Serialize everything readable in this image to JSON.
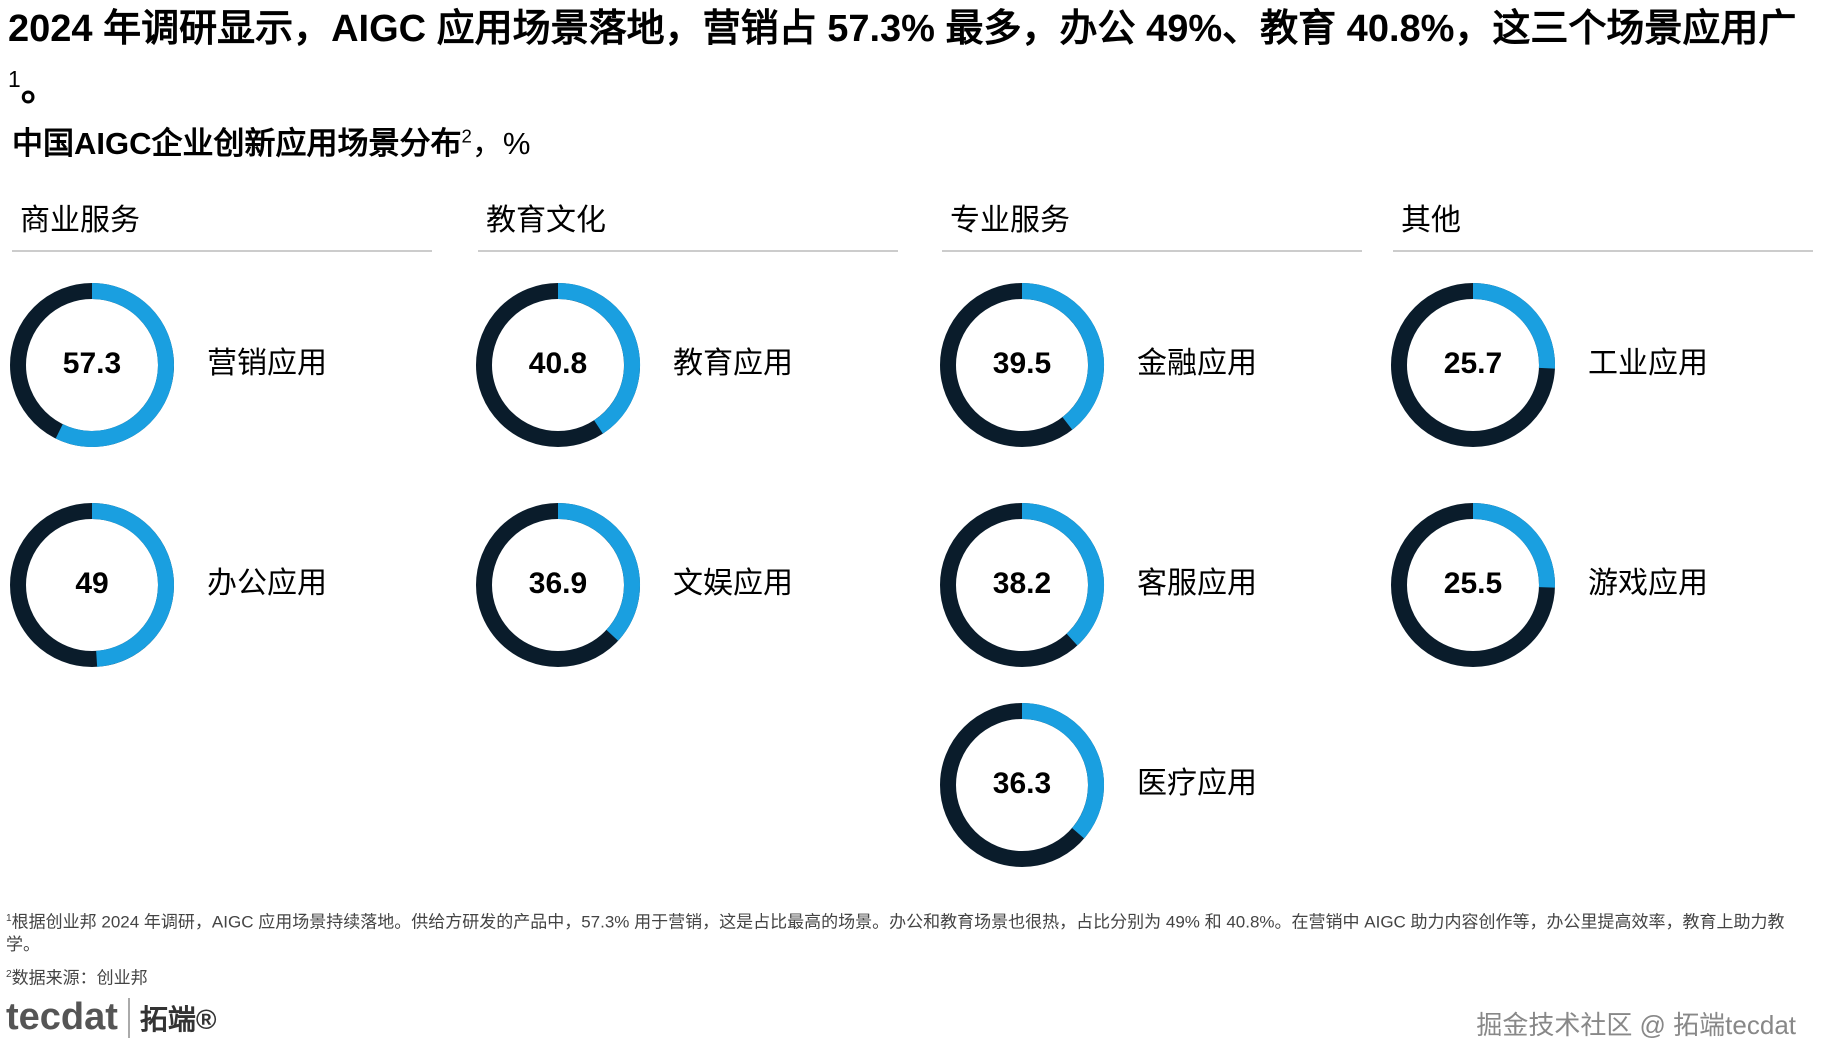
{
  "title": "2024 年调研显示，AIGC 应用场景落地，营销占 57.3% 最多，办公 49%、教育 40.8%，这三个场景应用广",
  "title_note": "1",
  "title_end": "。",
  "subtitle": "中国AIGC企业创新应用场景分布",
  "subtitle_note": "2",
  "subtitle_unit": "，%",
  "chart_data": [
    {
      "type": "donut",
      "title": "商业服务",
      "categories": [
        "营销应用",
        "办公应用"
      ],
      "values": [
        57.3,
        49
      ],
      "ylim": [
        0,
        100
      ],
      "color": "#1a9fe0",
      "track_color": "#0a1c2b"
    },
    {
      "type": "donut",
      "title": "教育文化",
      "categories": [
        "教育应用",
        "文娱应用"
      ],
      "values": [
        40.8,
        36.9
      ],
      "ylim": [
        0,
        100
      ],
      "color": "#1a9fe0",
      "track_color": "#0a1c2b"
    },
    {
      "type": "donut",
      "title": "专业服务",
      "categories": [
        "金融应用",
        "客服应用",
        "医疗应用"
      ],
      "values": [
        39.5,
        38.2,
        36.3
      ],
      "ylim": [
        0,
        100
      ],
      "color": "#1a9fe0",
      "track_color": "#0a1c2b"
    },
    {
      "type": "donut",
      "title": "其他",
      "categories": [
        "工业应用",
        "游戏应用"
      ],
      "values": [
        25.7,
        25.5
      ],
      "ylim": [
        0,
        100
      ],
      "color": "#1a9fe0",
      "track_color": "#0a1c2b"
    }
  ],
  "footnotes": [
    {
      "mark": "1",
      "text": "根据创业邦 2024 年调研，AIGC 应用场景持续落地。供给方研发的产品中，57.3% 用于营销，这是占比最高的场景。办公和教育场景也很热，占比分别为 49% 和 40.8%。在营销中 AIGC 助力内容创作等，办公里提高效率，教育上助力教学。"
    },
    {
      "mark": "2",
      "text": "数据来源：创业邦"
    }
  ],
  "logo": {
    "brand": "tecdat",
    "name": "拓端®"
  },
  "watermark": "掘金技术社区 @ 拓端tecdat"
}
